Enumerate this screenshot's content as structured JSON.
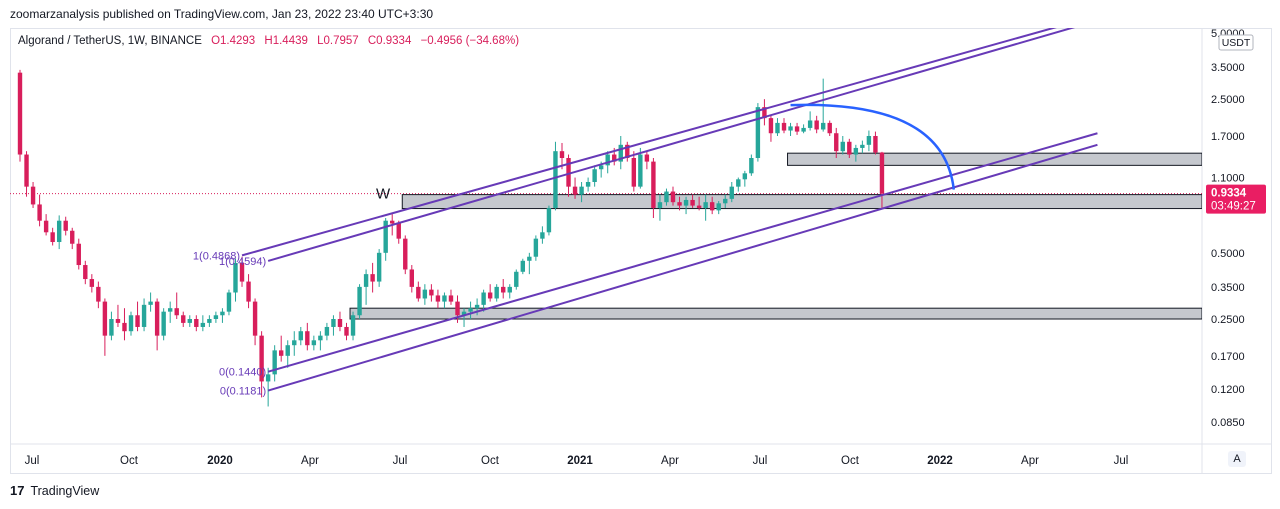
{
  "header": {
    "published": "zoomarzanalysis published on TradingView.com, Jan 23, 2022 23:40 UTC+3:30"
  },
  "legend": {
    "symbol": "Algorand / TetherUS, 1W, BINANCE",
    "open": "O1.4293",
    "high": "H1.4439",
    "low": "L0.7957",
    "close": "C0.9334",
    "change": "−0.4956 (−34.68%)"
  },
  "price_scale": {
    "currency": "USDT",
    "last_price": "0.9334",
    "countdown": "03:49:27",
    "auto_label": "A"
  },
  "footer": {
    "logo": "17",
    "brand": "TradingView"
  },
  "colors": {
    "up": "#26a69a",
    "down": "#d81e5b",
    "channel": "#673ab7",
    "arc": "#2962ff",
    "zone_fill": "#b2b5be",
    "badge": "#e91e63"
  },
  "chart_data": {
    "type": "candlestick",
    "y_scale": "log",
    "ylim": [
      0.07,
      5.0
    ],
    "y_ticks": [
      "5.0000",
      "3.5000",
      "2.5000",
      "1.7000",
      "1.1000",
      "0.5000",
      "0.3500",
      "0.2500",
      "0.1700",
      "0.1200",
      "0.0850"
    ],
    "x_ticks": [
      "Jul",
      "Oct",
      "2020",
      "Apr",
      "Jul",
      "Oct",
      "2021",
      "Apr",
      "Jul",
      "Oct",
      "2022",
      "Apr",
      "Jul"
    ],
    "candles": [
      [
        3.3,
        3.4,
        1.3,
        1.4
      ],
      [
        1.4,
        1.45,
        0.9,
        1.0
      ],
      [
        1.0,
        1.05,
        0.8,
        0.83
      ],
      [
        0.83,
        0.92,
        0.66,
        0.7
      ],
      [
        0.7,
        0.75,
        0.6,
        0.62
      ],
      [
        0.62,
        0.65,
        0.54,
        0.56
      ],
      [
        0.56,
        0.74,
        0.52,
        0.7
      ],
      [
        0.7,
        0.73,
        0.6,
        0.63
      ],
      [
        0.63,
        0.65,
        0.52,
        0.55
      ],
      [
        0.55,
        0.58,
        0.42,
        0.44
      ],
      [
        0.44,
        0.46,
        0.36,
        0.38
      ],
      [
        0.38,
        0.4,
        0.33,
        0.35
      ],
      [
        0.35,
        0.37,
        0.28,
        0.3
      ],
      [
        0.3,
        0.31,
        0.17,
        0.21
      ],
      [
        0.21,
        0.27,
        0.2,
        0.25
      ],
      [
        0.25,
        0.29,
        0.23,
        0.24
      ],
      [
        0.24,
        0.28,
        0.2,
        0.22
      ],
      [
        0.22,
        0.27,
        0.21,
        0.26
      ],
      [
        0.26,
        0.3,
        0.22,
        0.23
      ],
      [
        0.23,
        0.31,
        0.22,
        0.29
      ],
      [
        0.29,
        0.33,
        0.27,
        0.3
      ],
      [
        0.3,
        0.31,
        0.18,
        0.21
      ],
      [
        0.21,
        0.28,
        0.2,
        0.27
      ],
      [
        0.27,
        0.3,
        0.24,
        0.28
      ],
      [
        0.28,
        0.33,
        0.25,
        0.26
      ],
      [
        0.26,
        0.27,
        0.23,
        0.24
      ],
      [
        0.24,
        0.26,
        0.23,
        0.25
      ],
      [
        0.25,
        0.26,
        0.22,
        0.23
      ],
      [
        0.23,
        0.26,
        0.22,
        0.24
      ],
      [
        0.24,
        0.26,
        0.23,
        0.25
      ],
      [
        0.25,
        0.27,
        0.24,
        0.26
      ],
      [
        0.26,
        0.28,
        0.24,
        0.27
      ],
      [
        0.27,
        0.34,
        0.26,
        0.33
      ],
      [
        0.33,
        0.47,
        0.3,
        0.45
      ],
      [
        0.45,
        0.48,
        0.35,
        0.37
      ],
      [
        0.37,
        0.4,
        0.28,
        0.3
      ],
      [
        0.3,
        0.31,
        0.19,
        0.21
      ],
      [
        0.21,
        0.22,
        0.11,
        0.13
      ],
      [
        0.13,
        0.15,
        0.1,
        0.14
      ],
      [
        0.14,
        0.19,
        0.13,
        0.18
      ],
      [
        0.18,
        0.21,
        0.16,
        0.17
      ],
      [
        0.17,
        0.2,
        0.15,
        0.19
      ],
      [
        0.19,
        0.22,
        0.17,
        0.2
      ],
      [
        0.2,
        0.23,
        0.19,
        0.22
      ],
      [
        0.22,
        0.24,
        0.18,
        0.19
      ],
      [
        0.19,
        0.21,
        0.18,
        0.2
      ],
      [
        0.2,
        0.22,
        0.18,
        0.21
      ],
      [
        0.21,
        0.24,
        0.2,
        0.23
      ],
      [
        0.23,
        0.26,
        0.21,
        0.25
      ],
      [
        0.25,
        0.27,
        0.22,
        0.23
      ],
      [
        0.23,
        0.24,
        0.2,
        0.21
      ],
      [
        0.21,
        0.27,
        0.2,
        0.26
      ],
      [
        0.26,
        0.36,
        0.25,
        0.35
      ],
      [
        0.35,
        0.42,
        0.29,
        0.4
      ],
      [
        0.4,
        0.45,
        0.33,
        0.37
      ],
      [
        0.37,
        0.52,
        0.35,
        0.5
      ],
      [
        0.5,
        0.72,
        0.46,
        0.7
      ],
      [
        0.7,
        0.75,
        0.6,
        0.68
      ],
      [
        0.68,
        0.7,
        0.55,
        0.58
      ],
      [
        0.58,
        0.6,
        0.4,
        0.42
      ],
      [
        0.42,
        0.44,
        0.33,
        0.35
      ],
      [
        0.35,
        0.37,
        0.3,
        0.31
      ],
      [
        0.31,
        0.36,
        0.29,
        0.34
      ],
      [
        0.34,
        0.36,
        0.3,
        0.32
      ],
      [
        0.32,
        0.34,
        0.28,
        0.3
      ],
      [
        0.3,
        0.33,
        0.28,
        0.32
      ],
      [
        0.32,
        0.34,
        0.29,
        0.3
      ],
      [
        0.3,
        0.32,
        0.24,
        0.26
      ],
      [
        0.26,
        0.28,
        0.23,
        0.27
      ],
      [
        0.27,
        0.3,
        0.25,
        0.28
      ],
      [
        0.28,
        0.31,
        0.26,
        0.29
      ],
      [
        0.29,
        0.34,
        0.27,
        0.33
      ],
      [
        0.33,
        0.36,
        0.3,
        0.31
      ],
      [
        0.31,
        0.36,
        0.3,
        0.35
      ],
      [
        0.35,
        0.38,
        0.31,
        0.33
      ],
      [
        0.33,
        0.36,
        0.31,
        0.35
      ],
      [
        0.35,
        0.42,
        0.34,
        0.41
      ],
      [
        0.41,
        0.47,
        0.4,
        0.46
      ],
      [
        0.46,
        0.5,
        0.4,
        0.48
      ],
      [
        0.48,
        0.6,
        0.46,
        0.58
      ],
      [
        0.58,
        0.66,
        0.55,
        0.62
      ],
      [
        0.62,
        0.82,
        0.6,
        0.8
      ],
      [
        0.8,
        1.6,
        0.78,
        1.45
      ],
      [
        1.45,
        1.58,
        1.2,
        1.35
      ],
      [
        1.35,
        1.4,
        0.9,
        1.0
      ],
      [
        1.0,
        1.1,
        0.88,
        0.92
      ],
      [
        0.92,
        1.05,
        0.85,
        1.0
      ],
      [
        1.0,
        1.1,
        0.95,
        1.05
      ],
      [
        1.05,
        1.25,
        1.0,
        1.2
      ],
      [
        1.2,
        1.3,
        1.1,
        1.25
      ],
      [
        1.25,
        1.45,
        1.15,
        1.4
      ],
      [
        1.4,
        1.5,
        1.25,
        1.3
      ],
      [
        1.3,
        1.7,
        1.2,
        1.55
      ],
      [
        1.55,
        1.6,
        1.3,
        1.35
      ],
      [
        1.35,
        1.45,
        0.95,
        1.0
      ],
      [
        1.0,
        1.5,
        0.98,
        1.4
      ],
      [
        1.4,
        1.45,
        1.2,
        1.3
      ],
      [
        1.3,
        1.35,
        0.72,
        0.8
      ],
      [
        0.8,
        0.92,
        0.7,
        0.85
      ],
      [
        0.85,
        0.98,
        0.82,
        0.95
      ],
      [
        0.95,
        1.0,
        0.82,
        0.85
      ],
      [
        0.85,
        0.9,
        0.78,
        0.82
      ],
      [
        0.82,
        0.9,
        0.75,
        0.87
      ],
      [
        0.87,
        0.92,
        0.8,
        0.82
      ],
      [
        0.82,
        0.9,
        0.78,
        0.8
      ],
      [
        0.8,
        0.92,
        0.7,
        0.85
      ],
      [
        0.85,
        0.9,
        0.75,
        0.78
      ],
      [
        0.78,
        0.86,
        0.75,
        0.84
      ],
      [
        0.84,
        0.92,
        0.8,
        0.88
      ],
      [
        0.88,
        1.05,
        0.85,
        1.0
      ],
      [
        1.0,
        1.1,
        0.95,
        1.08
      ],
      [
        1.08,
        1.18,
        1.0,
        1.15
      ],
      [
        1.15,
        1.4,
        1.12,
        1.35
      ],
      [
        1.35,
        2.4,
        1.3,
        2.3
      ],
      [
        2.3,
        2.5,
        1.9,
        2.05
      ],
      [
        2.05,
        2.1,
        1.6,
        1.75
      ],
      [
        1.75,
        2.05,
        1.7,
        1.95
      ],
      [
        1.95,
        2.05,
        1.75,
        1.8
      ],
      [
        1.8,
        1.95,
        1.7,
        1.88
      ],
      [
        1.88,
        1.95,
        1.72,
        1.78
      ],
      [
        1.78,
        1.92,
        1.75,
        1.85
      ],
      [
        1.85,
        2.2,
        1.8,
        2.0
      ],
      [
        2.0,
        2.1,
        1.75,
        1.82
      ],
      [
        1.82,
        3.1,
        1.78,
        1.95
      ],
      [
        1.95,
        2.0,
        1.7,
        1.75
      ],
      [
        1.75,
        1.85,
        1.35,
        1.45
      ],
      [
        1.45,
        1.7,
        1.4,
        1.6
      ],
      [
        1.6,
        1.65,
        1.35,
        1.4
      ],
      [
        1.4,
        1.55,
        1.3,
        1.5
      ],
      [
        1.5,
        1.62,
        1.42,
        1.55
      ],
      [
        1.55,
        1.8,
        1.45,
        1.7
      ],
      [
        1.7,
        1.78,
        1.4,
        1.43
      ],
      [
        1.43,
        1.44,
        0.8,
        0.93
      ]
    ],
    "zones": [
      {
        "from_index": 118,
        "top": 1.42,
        "bottom": 1.25
      },
      {
        "from_index": 59,
        "top": 0.92,
        "bottom": 0.795
      },
      {
        "from_index": 51,
        "top": 0.28,
        "bottom": 0.25
      }
    ],
    "annotations": [
      {
        "text": "1(0.4868)",
        "candle": 34,
        "price": 0.4868
      },
      {
        "text": "1(0.4594)",
        "candle": 38,
        "price": 0.4594
      },
      {
        "text": "0(0.1440)",
        "candle": 38,
        "price": 0.144
      },
      {
        "text": "0(0.1181)",
        "candle": 38,
        "price": 0.1181
      },
      {
        "text": "W",
        "candle": 57,
        "price": 0.92
      }
    ],
    "channels": [
      {
        "from": [
          34,
          0.4868
        ],
        "to": [
          165,
          6.0
        ]
      },
      {
        "from": [
          38,
          0.4594
        ],
        "to": [
          165,
          5.7
        ]
      },
      {
        "from": [
          38,
          0.144
        ],
        "to": [
          165,
          1.75
        ]
      },
      {
        "from": [
          38,
          0.1181
        ],
        "to": [
          165,
          1.55
        ]
      }
    ],
    "arc": {
      "from": [
        118,
        2.35
      ],
      "to": [
        143,
        0.97
      ]
    }
  }
}
